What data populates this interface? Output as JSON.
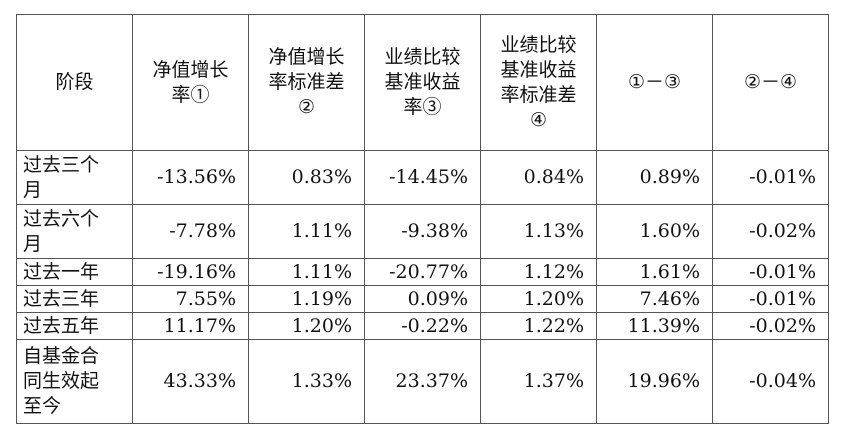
{
  "table": {
    "headers": [
      "阶段",
      "净值增长\n率①",
      "净值增长\n率标准差\n②",
      "业绩比较\n基准收益\n率③",
      "业绩比较\n基准收益\n率标准差\n④",
      "①－③",
      "②－④"
    ],
    "rows": [
      {
        "stage": "过去三个\n月",
        "values": [
          "-13.56%",
          "0.83%",
          "-14.45%",
          "0.84%",
          "0.89%",
          "-0.01%"
        ]
      },
      {
        "stage": "过去六个\n月",
        "values": [
          "-7.78%",
          "1.11%",
          "-9.38%",
          "1.13%",
          "1.60%",
          "-0.02%"
        ]
      },
      {
        "stage": "过去一年",
        "values": [
          "-19.16%",
          "1.11%",
          "-20.77%",
          "1.12%",
          "1.61%",
          "-0.01%"
        ]
      },
      {
        "stage": "过去三年",
        "values": [
          "7.55%",
          "1.19%",
          "0.09%",
          "1.20%",
          "7.46%",
          "-0.01%"
        ]
      },
      {
        "stage": "过去五年",
        "values": [
          "11.17%",
          "1.20%",
          "-0.22%",
          "1.22%",
          "11.39%",
          "-0.02%"
        ]
      },
      {
        "stage": "自基金合\n同生效起\n至今",
        "values": [
          "43.33%",
          "1.33%",
          "23.37%",
          "1.37%",
          "19.96%",
          "-0.04%"
        ]
      }
    ]
  }
}
